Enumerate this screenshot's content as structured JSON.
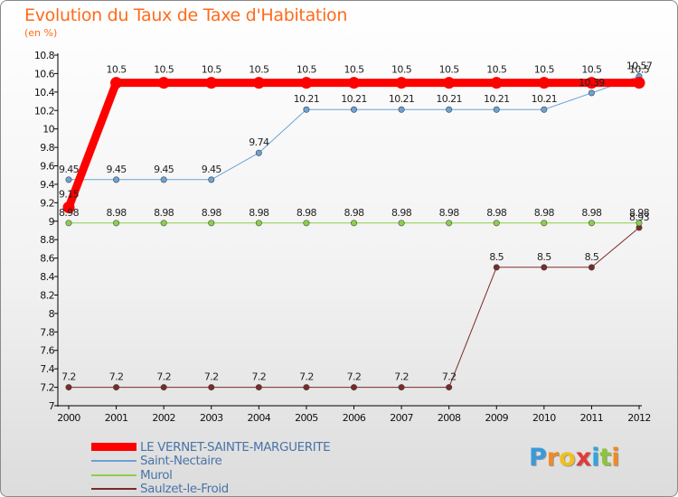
{
  "page": {
    "title": "Evolution du Taux de Taxe d'Habitation",
    "subtitle": "(en %)"
  },
  "chart_data": {
    "type": "line",
    "title": "Evolution du Taux de Taxe d'Habitation",
    "ylabel": "(en %)",
    "xlabel": "",
    "ylim": [
      7,
      10.8
    ],
    "yticks": [
      7,
      7.2,
      7.4,
      7.6,
      7.8,
      8,
      8.2,
      8.4,
      8.6,
      8.8,
      9,
      9.2,
      9.4,
      9.6,
      9.8,
      10,
      10.2,
      10.4,
      10.6,
      10.8
    ],
    "x": [
      2000,
      2001,
      2002,
      2003,
      2004,
      2005,
      2006,
      2007,
      2008,
      2009,
      2010,
      2011,
      2012
    ],
    "grid": false,
    "legend_position": "bottom-left",
    "series": [
      {
        "name": "LE VERNET-SAINTE-MARGUERITE",
        "color": "#ff0000",
        "values": [
          9.15,
          10.5,
          10.5,
          10.5,
          10.5,
          10.5,
          10.5,
          10.5,
          10.5,
          10.5,
          10.5,
          10.5,
          10.5
        ],
        "labels": [
          "9.15",
          "10.5",
          "10.5",
          "10.5",
          "10.5",
          "10.5",
          "10.5",
          "10.5",
          "10.5",
          "10.5",
          "10.5",
          "10.5",
          "10.5"
        ]
      },
      {
        "name": "Saint-Nectaire",
        "color": "#6aa3d6",
        "values": [
          9.45,
          9.45,
          9.45,
          9.45,
          9.74,
          10.21,
          10.21,
          10.21,
          10.21,
          10.21,
          10.21,
          10.39,
          10.57
        ],
        "labels": [
          "9.45",
          "9.45",
          "9.45",
          "9.45",
          "9.74",
          "10.21",
          "10.21",
          "10.21",
          "10.21",
          "10.21",
          "10.21",
          "10.39",
          "10.57"
        ]
      },
      {
        "name": "Murol",
        "color": "#8ccf4a",
        "values": [
          8.98,
          8.98,
          8.98,
          8.98,
          8.98,
          8.98,
          8.98,
          8.98,
          8.98,
          8.98,
          8.98,
          8.98,
          8.98
        ],
        "labels": [
          "8.98",
          "8.98",
          "8.98",
          "8.98",
          "8.98",
          "8.98",
          "8.98",
          "8.98",
          "8.98",
          "8.98",
          "8.98",
          "8.98",
          "8.98"
        ]
      },
      {
        "name": "Saulzet-le-Froid",
        "color": "#7a2a2a",
        "values": [
          7.2,
          7.2,
          7.2,
          7.2,
          7.2,
          7.2,
          7.2,
          7.2,
          7.2,
          8.5,
          8.5,
          8.5,
          8.93
        ],
        "labels": [
          "7.2",
          "7.2",
          "7.2",
          "7.2",
          "7.2",
          "7.2",
          "7.2",
          "7.2",
          "7.2",
          "8.5",
          "8.5",
          "8.5",
          "8.93"
        ]
      }
    ]
  },
  "logo": {
    "letters": [
      "P",
      "r",
      "o",
      "x",
      "i",
      "t",
      "i"
    ],
    "colors": [
      "#3a9ad9",
      "#f08a24",
      "#f0c020",
      "#e23a3a",
      "#2ea6e0",
      "#8cc43c",
      "#f08a24"
    ]
  }
}
